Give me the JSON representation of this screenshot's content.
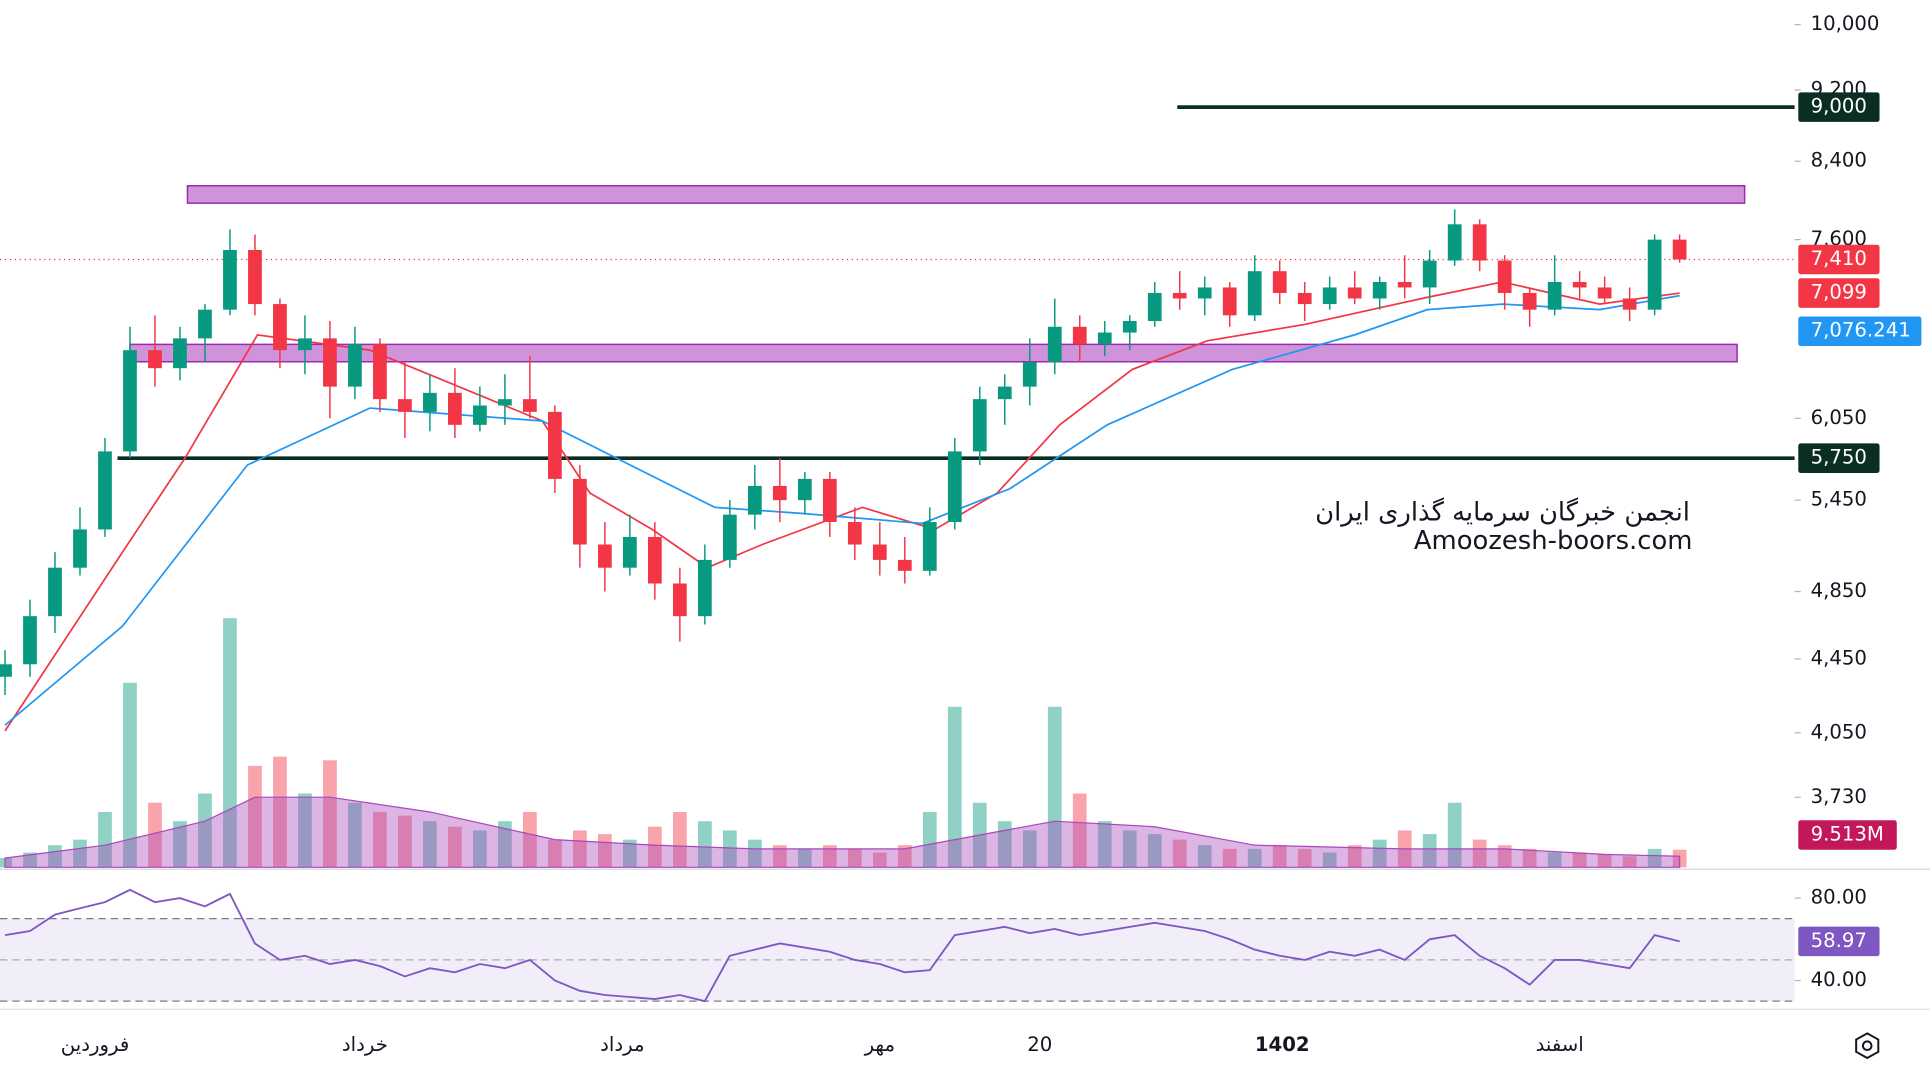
{
  "chart_data": {
    "type": "candlestick",
    "log_scale": true,
    "ylim": [
      3411,
      10319
    ],
    "yticks": [
      {
        "value": 10000,
        "label": "10,000"
      },
      {
        "value": 9200,
        "label": "9,200"
      },
      {
        "value": 8400,
        "label": "8,400"
      },
      {
        "value": 7600,
        "label": "7,600"
      },
      {
        "value": 6050,
        "label": "6,050"
      },
      {
        "value": 5450,
        "label": "5,450"
      },
      {
        "value": 4850,
        "label": "4,850"
      },
      {
        "value": 4450,
        "label": "4,450"
      },
      {
        "value": 4050,
        "label": "4,050"
      },
      {
        "value": 3730,
        "label": "3,730"
      }
    ],
    "xlim": [
      -0.2,
      71.6
    ],
    "xticks": [
      {
        "value": 3.6,
        "label": "فروردین"
      },
      {
        "value": 14.4,
        "label": "خرداد"
      },
      {
        "value": 24.7,
        "label": "مرداد"
      },
      {
        "value": 35,
        "label": "مهر"
      },
      {
        "value": 41.4,
        "label": "20"
      },
      {
        "value": 51.1,
        "label": "1402"
      },
      {
        "value": 62.2,
        "label": "اسفند"
      }
    ],
    "candles": {
      "up_color": "#089981",
      "down_color": "#f23645",
      "open": [
        4350,
        4420,
        4700,
        5000,
        5250,
        5800,
        6600,
        6450,
        6700,
        6950,
        7500,
        7000,
        6600,
        6700,
        6300,
        6650,
        6200,
        6100,
        6250,
        6000,
        6150,
        6200,
        6100,
        5600,
        5150,
        5000,
        5200,
        4900,
        4700,
        5050,
        5350,
        5550,
        5450,
        5600,
        5300,
        5150,
        5050,
        4980,
        5300,
        5800,
        6200,
        6300,
        6500,
        6800,
        6650,
        6750,
        6850,
        7100,
        7050,
        7150,
        6900,
        7300,
        7100,
        7000,
        7150,
        7050,
        7200,
        7150,
        7400,
        7750,
        7400,
        7100,
        6950,
        7200,
        7150,
        7050,
        6950,
        7600
      ],
      "high": [
        4500,
        4800,
        5100,
        5400,
        5900,
        6800,
        6900,
        6800,
        7000,
        7700,
        7650,
        7050,
        6900,
        6850,
        6800,
        6700,
        6500,
        6400,
        6450,
        6300,
        6400,
        6550,
        6150,
        5700,
        5300,
        5350,
        5300,
        5000,
        5150,
        5450,
        5700,
        5750,
        5650,
        5650,
        5400,
        5300,
        5200,
        5400,
        5900,
        6300,
        6400,
        6700,
        7050,
        6900,
        6850,
        6900,
        7200,
        7300,
        7250,
        7200,
        7450,
        7400,
        7200,
        7250,
        7300,
        7250,
        7450,
        7500,
        7900,
        7800,
        7450,
        7150,
        7450,
        7300,
        7250,
        7150,
        7650,
        7650
      ],
      "low": [
        4250,
        4350,
        4600,
        4950,
        5200,
        5750,
        6300,
        6350,
        6500,
        6900,
        6900,
        6450,
        6400,
        6050,
        6200,
        6100,
        5900,
        5950,
        5900,
        5950,
        6000,
        6050,
        5500,
        5000,
        4850,
        4950,
        4800,
        4550,
        4650,
        5000,
        5250,
        5300,
        5350,
        5200,
        5050,
        4950,
        4900,
        4950,
        5250,
        5700,
        6000,
        6150,
        6400,
        6500,
        6550,
        6600,
        6800,
        6950,
        6900,
        6800,
        6850,
        7000,
        6850,
        6950,
        7000,
        6950,
        7050,
        7000,
        7350,
        7300,
        6950,
        6800,
        6900,
        7050,
        7000,
        6850,
        6900,
        7380
      ],
      "close": [
        4420,
        4700,
        5000,
        5250,
        5800,
        6600,
        6450,
        6700,
        6950,
        7500,
        7000,
        6600,
        6700,
        6300,
        6650,
        6200,
        6100,
        6250,
        6000,
        6150,
        6200,
        6100,
        5600,
        5150,
        5000,
        5200,
        4900,
        4700,
        5050,
        5350,
        5550,
        5450,
        5600,
        5300,
        5150,
        5050,
        4980,
        5300,
        5800,
        6200,
        6300,
        6500,
        6800,
        6650,
        6750,
        6850,
        7100,
        7050,
        7150,
        6900,
        7300,
        7100,
        7000,
        7150,
        7050,
        7200,
        7150,
        7400,
        7750,
        7400,
        7100,
        6950,
        7200,
        7150,
        7050,
        6950,
        7600,
        7410
      ]
    },
    "last_price": {
      "value": 7410,
      "label": "7,410",
      "color": "#f23645"
    },
    "ma_series": [
      {
        "color": "#f23645",
        "x": [
          0,
          4.7,
          7.2,
          10.1,
          14.6,
          19.5,
          21.5,
          23.4,
          25.9,
          28.1,
          30.3,
          34.3,
          37.2,
          39.7,
          42.2,
          45.1,
          48.1,
          52,
          56.9,
          59.9,
          63.8,
          67
        ],
        "values": [
          4060,
          5100,
          5750,
          6730,
          6600,
          6190,
          6030,
          5500,
          5250,
          5000,
          5150,
          5400,
          5250,
          5500,
          6000,
          6440,
          6680,
          6820,
          7060,
          7200,
          7000,
          7099
        ],
        "last_label": "7,099"
      },
      {
        "color": "#2196f3",
        "x": [
          0,
          4.7,
          9.7,
          14.6,
          21.5,
          25.9,
          28.4,
          31.8,
          36.7,
          40.2,
          44.1,
          49.1,
          54,
          56.9,
          59.9,
          63.8,
          67
        ],
        "values": [
          4090,
          4640,
          5700,
          6130,
          6030,
          5620,
          5400,
          5360,
          5290,
          5530,
          6000,
          6440,
          6730,
          6950,
          7000,
          6950,
          7076.241
        ],
        "last_label": "7,076.241"
      }
    ],
    "levels": [
      {
        "value": 9000,
        "label": "9,000",
        "start": 46.9,
        "color": "#0b2e22"
      },
      {
        "value": 5750,
        "label": "5,750",
        "start": 4.5,
        "color": "#0b2e22"
      }
    ],
    "zones": [
      {
        "low": 7962,
        "high": 8141,
        "start": 7.3,
        "end": 69.6,
        "color": "#ce93d8"
      },
      {
        "low": 6503,
        "high": 6649,
        "start": 5,
        "end": 69.3,
        "color": "#ce93d8"
      }
    ],
    "volume": {
      "ylim": [
        0,
        140
      ],
      "values": [
        5,
        8,
        12,
        15,
        30,
        100,
        35,
        25,
        40,
        135,
        55,
        60,
        40,
        58,
        35,
        30,
        28,
        25,
        22,
        20,
        25,
        30,
        15,
        20,
        18,
        15,
        22,
        30,
        25,
        20,
        15,
        12,
        10,
        12,
        10,
        8,
        12,
        30,
        87,
        35,
        25,
        20,
        87,
        40,
        25,
        20,
        18,
        15,
        12,
        10,
        10,
        12,
        10,
        8,
        12,
        15,
        20,
        18,
        35,
        15,
        12,
        10,
        8,
        8,
        7,
        6,
        10,
        9.513
      ],
      "last_label": "9.513M",
      "ma_color": "#ab47bc",
      "ma_x": [
        0,
        4,
        8,
        10,
        13,
        17,
        22,
        26,
        30,
        36,
        40,
        42,
        46,
        50,
        56,
        60,
        64,
        67
      ],
      "ma_values": [
        5,
        12,
        25,
        38,
        38,
        30,
        15,
        12,
        10,
        10,
        20,
        25,
        22,
        12,
        10,
        10,
        7,
        6
      ]
    },
    "rsi": {
      "color": "#7e57c2",
      "ylim": [
        26.3,
        93.1
      ],
      "yticks": [
        {
          "value": 80,
          "label": "80.00"
        },
        {
          "value": 40,
          "label": "40.00"
        }
      ],
      "band": [
        30,
        70
      ],
      "mid": 50,
      "values": [
        62,
        64,
        72,
        75,
        78,
        84,
        78,
        80,
        76,
        82,
        58,
        50,
        52,
        48,
        50,
        47,
        42,
        46,
        44,
        48,
        46,
        50,
        40,
        35,
        33,
        32,
        31,
        33,
        30,
        52,
        55,
        58,
        56,
        54,
        50,
        48,
        44,
        45,
        62,
        64,
        66,
        63,
        65,
        62,
        64,
        66,
        68,
        66,
        64,
        60,
        55,
        52,
        50,
        54,
        52,
        55,
        50,
        60,
        62,
        52,
        46,
        38,
        50,
        50,
        48,
        46,
        62,
        58.97
      ],
      "last_label": "58.97"
    },
    "watermark": [
      "انجمن خبرگان سرمایه گذاری ایران",
      "Amoozesh-boors.com"
    ]
  }
}
